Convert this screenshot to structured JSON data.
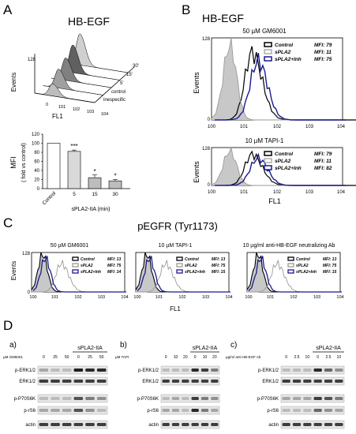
{
  "panelA": {
    "letter": "A",
    "title": "HB-EGF",
    "waterfall": {
      "y_label": "Events",
      "y_tick": "128",
      "x_label": "FL1",
      "x_ticks": [
        "0",
        "101",
        "102",
        "103",
        "104"
      ],
      "z_labels": [
        "30'",
        "15'",
        "5'",
        "control",
        "inespecific"
      ]
    },
    "bar": {
      "y_label": "MFI",
      "y_sublabel": "( fold vs control)",
      "y_ticks": [
        "0",
        "20",
        "40",
        "60",
        "80",
        "100",
        "120"
      ],
      "x_label": "sPLA2-IIA (min)"
    }
  },
  "panelB": {
    "letter": "B",
    "title": "HB-EGF",
    "plots": [
      {
        "subtitle": "50 µM GM6001",
        "y_label": "Events",
        "y_tick": "128",
        "y_zero": "0",
        "x_ticks": [
          "100",
          "101",
          "102",
          "103",
          "104"
        ],
        "legend": [
          {
            "name": "Control",
            "mfi": "MFI: 79"
          },
          {
            "name": "sPLA2",
            "mfi": "MFI: 11"
          },
          {
            "name": "sPLA2+Inh",
            "mfi": "MFI: 75"
          }
        ]
      },
      {
        "subtitle": "10 µM TAPI-1",
        "y_label": "Events",
        "y_tick": "128",
        "y_zero": "0",
        "x_ticks": [
          "100",
          "101",
          "102",
          "103",
          "104"
        ],
        "x_label": "FL1",
        "legend": [
          {
            "name": "Control",
            "mfi": "MFI: 79"
          },
          {
            "name": "sPLA2",
            "mfi": "MFI: 11"
          },
          {
            "name": "sPLA2+Inh",
            "mfi": "MFI: 82"
          }
        ]
      }
    ]
  },
  "panelC": {
    "letter": "C",
    "title": "pEGFR (Tyr1173)",
    "x_label": "FL1",
    "plots": [
      {
        "subtitle": "50 µM GM6001",
        "y_label": "Events",
        "y_tick": "128",
        "y_zero": "0",
        "x_ticks": [
          "100",
          "101",
          "102",
          "103",
          "104"
        ],
        "legend": [
          {
            "name": "Control",
            "mfi": "MFI: 13"
          },
          {
            "name": "sPLA2",
            "mfi": "MFI: 75"
          },
          {
            "name": "sPLA2+Inh",
            "mfi": "MFI: 14"
          }
        ]
      },
      {
        "subtitle": "10 µM TAPI-1",
        "x_ticks": [
          "100",
          "101",
          "102",
          "103",
          "104"
        ],
        "legend": [
          {
            "name": "Control",
            "mfi": "MFI: 13"
          },
          {
            "name": "sPLA2",
            "mfi": "MFI: 75"
          },
          {
            "name": "sPLA2+Inh",
            "mfi": "MFI: 15"
          }
        ]
      },
      {
        "subtitle": "10 µg/ml anti-HB-EGF neutralizing Ab",
        "x_ticks": [
          "100",
          "101",
          "102",
          "103",
          "104"
        ],
        "legend": [
          {
            "name": "Control",
            "mfi": "MFI: 13"
          },
          {
            "name": "sPLA2",
            "mfi": "MFI: 75"
          },
          {
            "name": "sPLA2+Inh",
            "mfi": "MFI: 15"
          }
        ]
      }
    ]
  },
  "panelD": {
    "letter": "D",
    "blots": [
      {
        "sub": "a)",
        "header": "sPLA2-IIA",
        "treatment": "µM GM6001",
        "lanes": [
          "0",
          "25",
          "50",
          "0",
          "25",
          "50"
        ],
        "rows": [
          "p-ERK1/2",
          "ERK1/2",
          "p-P70S6K",
          "p-rS6",
          "actin"
        ]
      },
      {
        "sub": "b)",
        "header": "sPLA2-IIA",
        "treatment": "µM TAPI",
        "lanes": [
          "0",
          "10",
          "20",
          "0",
          "10",
          "20"
        ],
        "rows": [
          "p-ERK1/2",
          "ERK1/2",
          "p-P70S6K",
          "p-rS6",
          "actin"
        ]
      },
      {
        "sub": "c)",
        "header": "sPLA2-IIA",
        "treatment": "µg/ml anti HB-EGF Ab",
        "lanes": [
          "0",
          "2.5",
          "10",
          "0",
          "2.5",
          "10"
        ],
        "rows": [
          "p-ERK1/2",
          "ERK1/2",
          "p-P70S6K",
          "p-rS6",
          "actin"
        ]
      }
    ]
  },
  "chart_data": [
    {
      "type": "bar",
      "categories": [
        "Control",
        "5",
        "15",
        "30"
      ],
      "values": [
        100,
        82,
        24,
        17
      ],
      "errors": [
        0,
        3,
        6,
        3
      ],
      "significance": [
        "",
        "***",
        "*",
        "*"
      ],
      "xlabel": "sPLA2-IIA (min)",
      "ylabel": "MFI",
      "ylim": [
        0,
        120
      ]
    }
  ],
  "colors": {
    "control": "#000000",
    "spla2": "#9a9a9a",
    "inh": "#1a1a8c",
    "fill": "#c8c8c8",
    "bar_dark": "#e0e0e0"
  }
}
